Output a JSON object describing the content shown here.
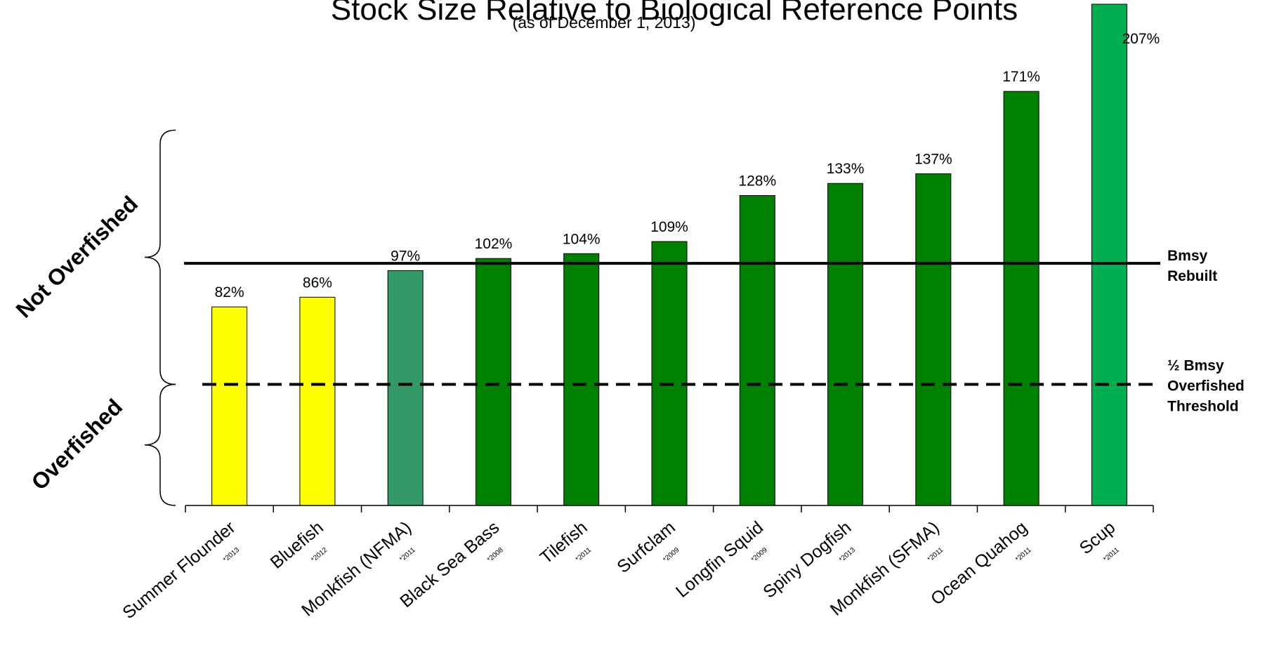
{
  "chart_data": {
    "type": "bar",
    "title": "Stock Size Relative to Biological Reference Points",
    "subtitle": "(as of December 1, 2013)",
    "categories": [
      "Summer Flounder",
      "Bluefish",
      "Monkfish (NFMA)",
      "Black Sea Bass",
      "Tilefish",
      "Surfclam",
      "Longfin Squid",
      "Spiny Dogfish",
      "Monkfish (SFMA)",
      "Ocean Quahog",
      "Scup"
    ],
    "assessment_years": [
      "*2013",
      "*2012",
      "*2011",
      "*2008",
      "*2011",
      "*2009",
      "*2009",
      "*2013",
      "*2011",
      "*2011",
      "*2011"
    ],
    "values": [
      82,
      86,
      97,
      102,
      104,
      109,
      128,
      133,
      137,
      171,
      207
    ],
    "value_labels": [
      "82%",
      "86%",
      "97%",
      "102%",
      "104%",
      "109%",
      "128%",
      "133%",
      "137%",
      "171%",
      "207%"
    ],
    "bar_colors": [
      "#ffff00",
      "#ffff00",
      "#339966",
      "#008000",
      "#008000",
      "#008000",
      "#008000",
      "#008000",
      "#008000",
      "#008000",
      "#00b050"
    ],
    "ylim": [
      0,
      207
    ],
    "grid": false,
    "legend": "none",
    "reference_lines": [
      {
        "value": 100,
        "style": "solid",
        "label_lines": [
          "Bmsy",
          "Rebuilt"
        ]
      },
      {
        "value": 50,
        "style": "dashed",
        "label_lines": [
          "½ Bmsy",
          "Overfished",
          "Threshold"
        ]
      }
    ],
    "zones": [
      {
        "label": "Not Overfished",
        "from": 50,
        "to": 155
      },
      {
        "label": "Overfished",
        "from": 0,
        "to": 50
      }
    ]
  }
}
